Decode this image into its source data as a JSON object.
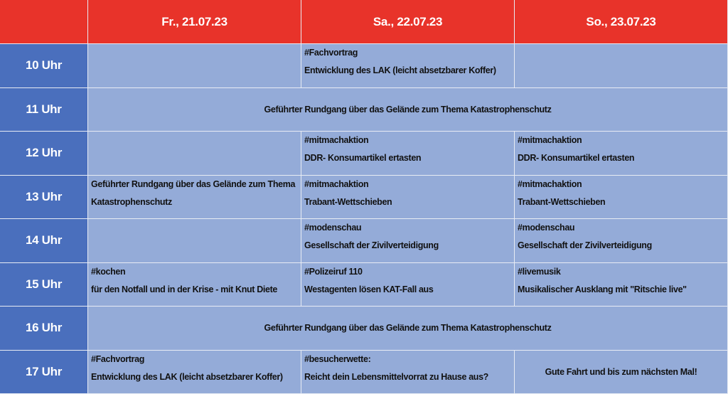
{
  "header": {
    "days": [
      "Fr., 21.07.23",
      "Sa., 22.07.23",
      "So., 23.07.23"
    ]
  },
  "colors": {
    "header": "#e8332a",
    "time": "#4a6fbd",
    "cell": "#94abd8"
  },
  "rows": [
    {
      "time": "10 Uhr",
      "cells": [
        {
          "tag": "",
          "text": ""
        },
        {
          "tag": "#Fachvortrag",
          "text": "Entwicklung des LAK (leicht absetzbarer Koffer)"
        },
        {
          "tag": "",
          "text": ""
        }
      ]
    },
    {
      "time": "11 Uhr",
      "span": "Geführter Rundgang über das Gelände zum Thema Katastrophenschutz"
    },
    {
      "time": "12 Uhr",
      "cells": [
        {
          "tag": "",
          "text": ""
        },
        {
          "tag": "#mitmachaktion",
          "text": "DDR- Konsumartikel ertasten"
        },
        {
          "tag": "#mitmachaktion",
          "text": "DDR- Konsumartikel ertasten"
        }
      ]
    },
    {
      "time": "13 Uhr",
      "cells": [
        {
          "tag": "Geführter Rundgang über das Gelände zum Thema",
          "text": "Katastrophenschutz"
        },
        {
          "tag": "#mitmachaktion",
          "text": "Trabant-Wettschieben"
        },
        {
          "tag": "#mitmachaktion",
          "text": "Trabant-Wettschieben"
        }
      ]
    },
    {
      "time": "14 Uhr",
      "cells": [
        {
          "tag": "",
          "text": ""
        },
        {
          "tag": "#modenschau",
          "text": "Gesellschaft der Zivilverteidigung"
        },
        {
          "tag": "#modenschau",
          "text": "Gesellschaft der Zivilverteidigung"
        }
      ]
    },
    {
      "time": "15 Uhr",
      "cells": [
        {
          "tag": "#kochen",
          "text": "für den Notfall und in der Krise - mit Knut Diete"
        },
        {
          "tag": "#Polizeiruf 110",
          "text": "Westagenten lösen KAT-Fall aus"
        },
        {
          "tag": "#livemusik",
          "text": "Musikalischer Ausklang mit \"Ritschie live\""
        }
      ]
    },
    {
      "time": "16 Uhr",
      "span": "Geführter Rundgang über das Gelände zum Thema Katastrophenschutz"
    },
    {
      "time": "17 Uhr",
      "cells": [
        {
          "tag": "#Fachvortrag",
          "text": "Entwicklung des LAK (leicht absetzbarer Koffer)"
        },
        {
          "tag": "#besucherwette:",
          "text": "Reicht dein Lebensmittelvorrat zu Hause aus?"
        },
        {
          "center": "Gute Fahrt und bis zum nächsten Mal!"
        }
      ]
    }
  ]
}
